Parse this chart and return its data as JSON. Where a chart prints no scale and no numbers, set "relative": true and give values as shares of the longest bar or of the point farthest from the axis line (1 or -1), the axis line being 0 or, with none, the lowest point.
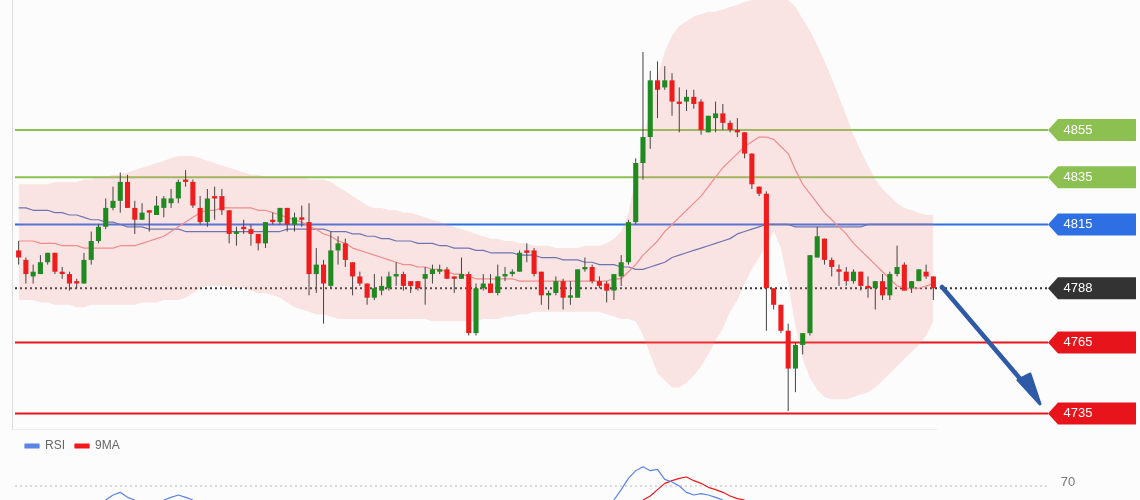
{
  "chart_data": [
    {
      "type": "candlestick",
      "categories": [
        null,
        null,
        null,
        null,
        null,
        null,
        null,
        null,
        null,
        null,
        null,
        null,
        null,
        null,
        null,
        null,
        null,
        null,
        null,
        null,
        null,
        null,
        null,
        null,
        null,
        null,
        null,
        null,
        null,
        null,
        null,
        null,
        null,
        null,
        null,
        null,
        null,
        null,
        null,
        null,
        null,
        null,
        null,
        null,
        null,
        null,
        null,
        null,
        null,
        null,
        null,
        null,
        null,
        null,
        null,
        null,
        null,
        null,
        null,
        null,
        null,
        null,
        null,
        null,
        null,
        null,
        null,
        null,
        null,
        null,
        null,
        null,
        null,
        null,
        null,
        null,
        null,
        null,
        null,
        null,
        null,
        null,
        null,
        null,
        null,
        null,
        null,
        null,
        null,
        null,
        null,
        null,
        null,
        null,
        null,
        null,
        null,
        null,
        null,
        null,
        null,
        null,
        null,
        null,
        null,
        null,
        null,
        null,
        null,
        null,
        null,
        null,
        null,
        null,
        null,
        null,
        null,
        null,
        null,
        null,
        null,
        null,
        null,
        null,
        null,
        null,
        null
      ],
      "ohlc": [
        [
          4804,
          4808,
          4798,
          4801
        ],
        [
          4800,
          4801,
          4790,
          4794
        ],
        [
          4793,
          4798,
          4790,
          4795
        ],
        [
          4794,
          4802,
          4794,
          4799
        ],
        [
          4799,
          4803,
          4798,
          4803
        ],
        [
          4803,
          4803,
          4794,
          4795
        ],
        [
          4795,
          4797,
          4792,
          4794
        ],
        [
          4794,
          4795,
          4787,
          4790
        ],
        [
          4791,
          4792,
          4788,
          4790
        ],
        [
          4790,
          4803,
          4790,
          4800
        ],
        [
          4800,
          4812,
          4798,
          4808
        ],
        [
          4808,
          4815,
          4807,
          4814
        ],
        [
          4814,
          4826,
          4813,
          4822
        ],
        [
          4822,
          4831,
          4821,
          4825
        ],
        [
          4825,
          4837,
          4820,
          4833
        ],
        [
          4833,
          4836,
          4822,
          4822
        ],
        [
          4822,
          4825,
          4811,
          4817
        ],
        [
          4817,
          4824,
          4817,
          4820
        ],
        [
          4821,
          4821,
          4812,
          4820
        ],
        [
          4819,
          4827,
          4819,
          4823
        ],
        [
          4822,
          4827,
          4818,
          4826
        ],
        [
          4824,
          4830,
          4822,
          4826
        ],
        [
          4826,
          4834,
          4824,
          4833
        ],
        [
          4834,
          4838,
          4831,
          4833
        ],
        [
          4833,
          4834,
          4822,
          4823
        ],
        [
          4822,
          4827,
          4815,
          4816
        ],
        [
          4816,
          4830,
          4814,
          4826
        ],
        [
          4827,
          4831,
          4817,
          4826
        ],
        [
          4827,
          4830,
          4819,
          4821
        ],
        [
          4821,
          4821,
          4807,
          4811
        ],
        [
          4811,
          4814,
          4806,
          4812
        ],
        [
          4814,
          4817,
          4811,
          4813
        ],
        [
          4813,
          4815,
          4806,
          4811
        ],
        [
          4811,
          4811,
          4804,
          4807
        ],
        [
          4807,
          4816,
          4805,
          4816
        ],
        [
          4817,
          4820,
          4815,
          4816
        ],
        [
          4816,
          4822,
          4815,
          4822
        ],
        [
          4822,
          4822,
          4812,
          4815
        ],
        [
          4815,
          4820,
          4812,
          4818
        ],
        [
          4818,
          4823,
          4814,
          4817
        ],
        [
          4816,
          4824,
          4785,
          4794
        ],
        [
          4794,
          4805,
          4786,
          4798
        ],
        [
          4798,
          4800,
          4773,
          4790
        ],
        [
          4789,
          4812,
          4788,
          4804
        ],
        [
          4804,
          4810,
          4798,
          4807
        ],
        [
          4807,
          4809,
          4797,
          4800
        ],
        [
          4799,
          4799,
          4785,
          4793
        ],
        [
          4793,
          4795,
          4789,
          4790
        ],
        [
          4790,
          4790,
          4781,
          4784
        ],
        [
          4784,
          4794,
          4783,
          4788
        ],
        [
          4787,
          4793,
          4785,
          4789
        ],
        [
          4788,
          4795,
          4787,
          4793
        ],
        [
          4793,
          4799,
          4789,
          4794
        ],
        [
          4794,
          4795,
          4787,
          4789
        ],
        [
          4791,
          4791,
          4786,
          4789
        ],
        [
          4791,
          4791,
          4787,
          4788
        ],
        [
          4792,
          4797,
          4781,
          4794
        ],
        [
          4794,
          4798,
          4790,
          4796
        ],
        [
          4795,
          4798,
          4794,
          4796
        ],
        [
          4796,
          4797,
          4792,
          4792
        ],
        [
          4793,
          4793,
          4786,
          4792
        ],
        [
          4792,
          4801,
          4792,
          4794
        ],
        [
          4794,
          4795,
          4768,
          4769
        ],
        [
          4769,
          4790,
          4768,
          4788
        ],
        [
          4788,
          4794,
          4787,
          4790
        ],
        [
          4790,
          4794,
          4786,
          4786
        ],
        [
          4786,
          4798,
          4785,
          4793
        ],
        [
          4793,
          4797,
          4791,
          4794
        ],
        [
          4794,
          4796,
          4793,
          4795
        ],
        [
          4795,
          4804,
          4795,
          4803
        ],
        [
          4804,
          4807,
          4799,
          4803
        ],
        [
          4804,
          4805,
          4793,
          4794
        ],
        [
          4795,
          4795,
          4781,
          4785
        ],
        [
          4785,
          4787,
          4779,
          4786
        ],
        [
          4786,
          4793,
          4785,
          4791
        ],
        [
          4791,
          4792,
          4779,
          4784
        ],
        [
          4784,
          4791,
          4781,
          4785
        ],
        [
          4784,
          4796,
          4784,
          4796
        ],
        [
          4796,
          4801,
          4795,
          4797
        ],
        [
          4797,
          4798,
          4790,
          4791
        ],
        [
          4791,
          4793,
          4788,
          4789
        ],
        [
          4790,
          4791,
          4782,
          4787
        ],
        [
          4787,
          4794,
          4783,
          4794
        ],
        [
          4793,
          4802,
          4789,
          4799
        ],
        [
          4799,
          4817,
          4798,
          4816
        ],
        [
          4816,
          4843,
          4815,
          4841
        ],
        [
          4841,
          4888,
          4834,
          4852
        ],
        [
          4852,
          4880,
          4847,
          4876
        ],
        [
          4876,
          4884,
          4860,
          4872
        ],
        [
          4873,
          4882,
          4872,
          4876
        ],
        [
          4876,
          4879,
          4861,
          4867
        ],
        [
          4867,
          4873,
          4854,
          4866
        ],
        [
          4867,
          4872,
          4863,
          4869
        ],
        [
          4869,
          4872,
          4864,
          4866
        ],
        [
          4867,
          4868,
          4853,
          4855
        ],
        [
          4854,
          4861,
          4854,
          4861
        ],
        [
          4860,
          4867,
          4854,
          4862
        ],
        [
          4862,
          4866,
          4855,
          4858
        ],
        [
          4858,
          4859,
          4854,
          4855
        ],
        [
          4855,
          4860,
          4852,
          4854
        ],
        [
          4854,
          4854,
          4843,
          4845
        ],
        [
          4845,
          4845,
          4830,
          4832
        ],
        [
          4831,
          4831,
          4827,
          4828
        ],
        [
          4828,
          4829,
          4770,
          4788
        ],
        [
          4788,
          4788,
          4779,
          4781
        ],
        [
          4781,
          4781,
          4769,
          4770
        ],
        [
          4770,
          4773,
          4736,
          4754
        ],
        [
          4754,
          4765,
          4744,
          4764
        ],
        [
          4764,
          4769,
          4760,
          4769
        ],
        [
          4769,
          4802,
          4768,
          4802
        ],
        [
          4801,
          4814,
          4801,
          4810
        ],
        [
          4809,
          4809,
          4798,
          4800
        ],
        [
          4800,
          4801,
          4793,
          4797
        ],
        [
          4796,
          4798,
          4789,
          4795
        ],
        [
          4795,
          4797,
          4789,
          4791
        ],
        [
          4791,
          4796,
          4790,
          4795
        ],
        [
          4795,
          4795,
          4787,
          4789
        ],
        [
          4789,
          4793,
          4784,
          4788
        ],
        [
          4788,
          4791,
          4779,
          4791
        ],
        [
          4791,
          4794,
          4783,
          4785
        ],
        [
          4785,
          4795,
          4783,
          4794
        ],
        [
          4794,
          4806,
          4793,
          4797
        ],
        [
          4798,
          4799,
          4787,
          4787
        ],
        [
          4788,
          4791,
          4786,
          4791
        ],
        [
          4791,
          4796,
          4791,
          4796
        ],
        [
          4795,
          4798,
          4792,
          4793
        ],
        [
          4793,
          4793,
          4783,
          4788
        ]
      ],
      "series": [
        {
          "type": "line",
          "color": "#f08c8c",
          "values": [
            4808,
            4808,
            4808,
            4807,
            4807,
            4807,
            4806,
            4806,
            4806,
            4805,
            4805,
            4805,
            4805,
            4805,
            4806,
            4806,
            4806,
            4807,
            4808,
            4809,
            4810,
            4812,
            4814,
            4816,
            4818,
            4820,
            4821,
            4821,
            4822,
            4822,
            4822,
            4822,
            4822,
            4821,
            4821,
            4820,
            4819,
            4818,
            4817,
            4816,
            4814,
            4813,
            4811,
            4810,
            4808,
            4807,
            4805,
            4804,
            4803,
            4802,
            4801,
            4800,
            4799,
            4798,
            4798,
            4797,
            4797,
            4796,
            4796,
            4795,
            4794,
            4794,
            4793,
            4792,
            4792,
            4792,
            4792,
            4792,
            4792,
            4791,
            4791,
            4791,
            4791,
            4791,
            4791,
            4791,
            4791,
            4791,
            4791,
            4791,
            4791,
            4791,
            4792,
            4792,
            4795,
            4798,
            4802,
            4805,
            4808,
            4812,
            4815,
            4818,
            4821,
            4824,
            4827,
            4831,
            4835,
            4839,
            4842,
            4845,
            4848,
            4850,
            4852,
            4852,
            4851,
            4848,
            4845,
            4838,
            4832,
            4828,
            4824,
            4820,
            4817,
            4814,
            4811,
            4807,
            4804,
            4801,
            4798,
            4795,
            4792,
            4789,
            4788,
            4788,
            4788,
            4789,
            4790
          ],
          "lower": [
            4783,
            4783,
            4783,
            4782,
            4782,
            4781,
            4781,
            4781,
            4780,
            4780,
            4781,
            4781,
            4781,
            4781,
            4781,
            4781,
            4781,
            4782,
            4782,
            4782,
            4783,
            4783,
            4783,
            4784,
            4786,
            4788,
            4789,
            4789,
            4789,
            4789,
            4788,
            4788,
            4787,
            4786,
            4786,
            4785,
            4784,
            4782,
            4780,
            4779,
            4778,
            4777,
            4777,
            4776,
            4775,
            4775,
            4775,
            4775,
            4775,
            4775,
            4775,
            4775,
            4775,
            4775,
            4775,
            4775,
            4775,
            4774,
            4774,
            4774,
            4774,
            4774,
            4774,
            4774,
            4775,
            4775,
            4775,
            4776,
            4776,
            4777,
            4777,
            4778,
            4778,
            4778,
            4778,
            4778,
            4778,
            4778,
            4778,
            4778,
            4778,
            4777,
            4776,
            4775,
            4775,
            4774,
            4768,
            4760,
            4752,
            4749,
            4746,
            4746,
            4748,
            4751,
            4755,
            4760,
            4766,
            4771,
            4778,
            4783,
            4790,
            4796,
            4801,
            4806,
            4812,
            4805,
            4790,
            4772,
            4758,
            4750,
            4745,
            4742,
            4741,
            4741,
            4741,
            4742,
            4743,
            4744,
            4746,
            4749,
            4752,
            4755,
            4758,
            4761,
            4764,
            4768,
            4774
          ],
          "upper": [
            4832,
            4832,
            4832,
            4832,
            4832,
            4833,
            4833,
            4833,
            4833,
            4834,
            4834,
            4835,
            4835,
            4836,
            4836,
            4837,
            4838,
            4839,
            4840,
            4841,
            4842,
            4843,
            4844,
            4844,
            4844,
            4843,
            4842,
            4841,
            4840,
            4839,
            4838,
            4837,
            4836,
            4836,
            4835,
            4835,
            4835,
            4835,
            4835,
            4835,
            4834,
            4834,
            4834,
            4833,
            4831,
            4829,
            4827,
            4825,
            4823,
            4822,
            4822,
            4821,
            4821,
            4820,
            4820,
            4819,
            4818,
            4817,
            4816,
            4815,
            4814,
            4813,
            4812,
            4811,
            4810,
            4809,
            4809,
            4808,
            4808,
            4807,
            4807,
            4806,
            4806,
            4806,
            4805,
            4805,
            4805,
            4805,
            4806,
            4806,
            4806,
            4807,
            4809,
            4812,
            4820,
            4835,
            4850,
            4865,
            4878,
            4888,
            4895,
            4899,
            4901,
            4903,
            4904,
            4905,
            4905,
            4906,
            4907,
            4908,
            4909,
            4910,
            4910,
            4910,
            4910,
            4910,
            4910,
            4907,
            4902,
            4897,
            4891,
            4884,
            4877,
            4869,
            4861,
            4853,
            4846,
            4840,
            4834,
            4830,
            4827,
            4824,
            4822,
            4821,
            4820,
            4819,
            4819
          ]
        },
        {
          "type": "line",
          "color": "#4a6fb8",
          "values": [
            4822,
            4822,
            4821,
            4821,
            4821,
            4820,
            4820,
            4819,
            4819,
            4818,
            4817,
            4817,
            4816,
            4816,
            4815,
            4814,
            4814,
            4814,
            4813,
            4813,
            4813,
            4813,
            4813,
            4812,
            4812,
            4812,
            4812,
            4812,
            4812,
            4812,
            4812,
            4812,
            4812,
            4812,
            4812,
            4812,
            4812,
            4813,
            4813,
            4813,
            4813,
            4813,
            4813,
            4812,
            4812,
            4812,
            4811,
            4811,
            4810,
            4810,
            4809,
            4809,
            4808,
            4808,
            4808,
            4807,
            4807,
            4807,
            4806,
            4806,
            4805,
            4805,
            4805,
            4804,
            4804,
            4803,
            4803,
            4803,
            4803,
            4802,
            4802,
            4802,
            4801,
            4801,
            4801,
            4800,
            4800,
            4800,
            4799,
            4799,
            4798,
            4798,
            4798,
            4797,
            4797,
            4796,
            4796,
            4797,
            4798,
            4799,
            4801,
            4802,
            4803,
            4804,
            4805,
            4806,
            4807,
            4808,
            4809,
            4811,
            4812,
            4813,
            4814,
            4815,
            4815,
            4815,
            4815,
            4814,
            4814,
            4814,
            4814,
            4814,
            4814,
            4814,
            4814,
            4814,
            4814,
            4815,
            4815,
            4815,
            4815,
            4815,
            4815,
            4815,
            4815,
            4815,
            4815
          ]
        }
      ],
      "ylim": [
        4728,
        4910
      ],
      "yticks": [
        4735,
        4765,
        4788,
        4815,
        4835,
        4855
      ],
      "tick_labels": "y",
      "ref_lines": [
        {
          "axis": "y",
          "value": 4855,
          "color": "#8cc152",
          "line_style": "solid"
        },
        {
          "axis": "y",
          "value": 4835,
          "color": "#8cc152",
          "line_style": "solid"
        },
        {
          "axis": "y",
          "value": 4815,
          "color": "#2f6fe4",
          "line_style": "solid"
        },
        {
          "axis": "y",
          "value": 4788,
          "color": "#333333",
          "line_style": "dotted"
        },
        {
          "axis": "y",
          "value": 4765,
          "color": "#e8141b",
          "line_style": "solid"
        },
        {
          "axis": "y",
          "value": 4735,
          "color": "#e8141b",
          "line_style": "solid"
        }
      ]
    },
    {
      "type": "line",
      "categories": [
        null,
        null,
        null,
        null,
        null,
        null,
        null,
        null,
        null,
        null,
        null,
        null,
        null,
        null,
        null,
        null,
        null,
        null,
        null,
        null,
        null,
        null,
        null,
        null,
        null,
        null,
        null,
        null,
        null,
        null,
        null,
        null,
        null,
        null,
        null,
        null,
        null,
        null,
        null,
        null,
        null,
        null,
        null,
        null,
        null,
        null,
        null,
        null,
        null,
        null,
        null,
        null,
        null,
        null,
        null,
        null,
        null,
        null,
        null,
        null,
        null,
        null,
        null,
        null,
        null,
        null,
        null,
        null,
        null,
        null,
        null,
        null,
        null,
        null,
        null,
        null,
        null,
        null,
        null,
        null,
        null,
        null,
        null,
        null,
        null,
        null,
        null,
        null,
        null,
        null,
        null,
        null,
        null,
        null,
        null,
        null,
        null,
        null,
        null,
        null,
        null,
        null,
        null,
        null,
        null,
        null,
        null,
        null,
        null,
        null,
        null,
        null,
        null,
        null,
        null,
        null,
        null,
        null,
        null,
        null,
        null,
        null,
        null,
        null,
        null,
        null,
        null
      ],
      "series": [
        {
          "name": "RSI",
          "color": "#5b84e6",
          "values": [
            null,
            null,
            null,
            null,
            null,
            null,
            null,
            null,
            null,
            null,
            null,
            null,
            0,
            0.15,
            0.23,
            0.08,
            0,
            null,
            null,
            null,
            0,
            0.08,
            0.15,
            0.08,
            0,
            null,
            null,
            null,
            null,
            null,
            null,
            null,
            null,
            null,
            null,
            null,
            null,
            null,
            null,
            null,
            null,
            null,
            null,
            null,
            null,
            null,
            null,
            null,
            null,
            null,
            null,
            null,
            null,
            null,
            null,
            null,
            null,
            null,
            null,
            null,
            null,
            null,
            null,
            null,
            null,
            null,
            null,
            null,
            null,
            null,
            null,
            null,
            null,
            null,
            null,
            null,
            null,
            null,
            null,
            null,
            null,
            null,
            0,
            0.31,
            0.65,
            0.88,
            1,
            0.88,
            0.92,
            0.62,
            0.54,
            0.42,
            0.23,
            0.15,
            0.19,
            0.15,
            0.08,
            0,
            null,
            null,
            null,
            null,
            null,
            null,
            null,
            null,
            null,
            null,
            null,
            null,
            null,
            null,
            null,
            null,
            null,
            null,
            null,
            null,
            null,
            null,
            null,
            null,
            null,
            null,
            null,
            null,
            null
          ]
        },
        {
          "name": "9MA",
          "color": "#f01818",
          "values": [
            null,
            null,
            null,
            null,
            null,
            null,
            null,
            null,
            null,
            null,
            null,
            null,
            null,
            null,
            null,
            null,
            null,
            null,
            null,
            null,
            null,
            null,
            null,
            null,
            null,
            null,
            null,
            null,
            null,
            null,
            null,
            null,
            null,
            null,
            null,
            null,
            null,
            null,
            null,
            null,
            null,
            null,
            null,
            null,
            null,
            null,
            null,
            null,
            null,
            null,
            null,
            null,
            null,
            null,
            null,
            null,
            null,
            null,
            null,
            null,
            null,
            null,
            null,
            null,
            null,
            null,
            null,
            null,
            null,
            null,
            null,
            null,
            null,
            null,
            null,
            null,
            null,
            null,
            null,
            null,
            null,
            null,
            null,
            null,
            null,
            null,
            0,
            0.12,
            0.31,
            0.5,
            0.58,
            0.65,
            0.69,
            0.58,
            0.5,
            0.38,
            0.31,
            0.23,
            0.12,
            0.04,
            0,
            null,
            null,
            null,
            null,
            null,
            null,
            null,
            null,
            null,
            null,
            null,
            null,
            null,
            null,
            null,
            null,
            null,
            null,
            null,
            null,
            null,
            null,
            null,
            null,
            null,
            null
          ]
        }
      ],
      "relative": true,
      "ref_lines": [
        {
          "axis": "y",
          "value": 0.42,
          "color": "#b8b8b8",
          "line_style": "dotted"
        }
      ],
      "annotations": [
        "70"
      ],
      "legend": "top left"
    }
  ]
}
